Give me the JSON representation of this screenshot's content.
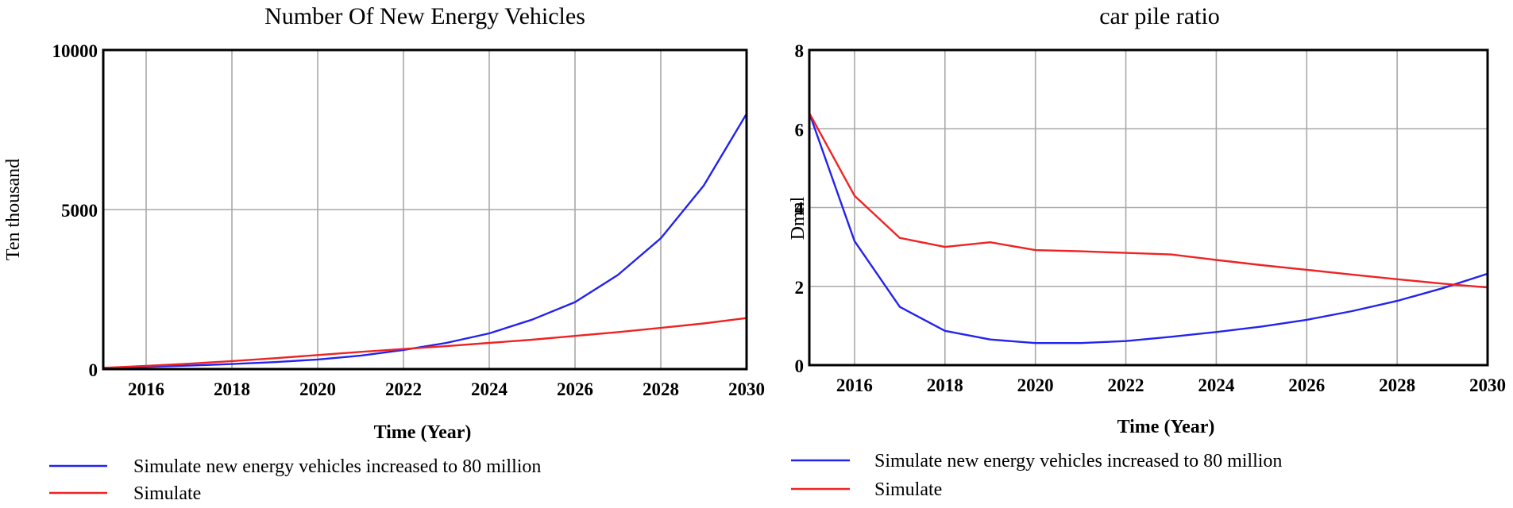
{
  "chart_data": [
    {
      "type": "line",
      "title": "Number Of New Energy Vehicles",
      "xlabel": "Time (Year)",
      "ylabel": "Ten thousand",
      "xlim": [
        2015,
        2030
      ],
      "ylim": [
        0,
        10000
      ],
      "x_ticks": [
        2016,
        2018,
        2020,
        2022,
        2024,
        2026,
        2028,
        2030
      ],
      "y_ticks": [
        0,
        5000,
        10000
      ],
      "grid": true,
      "legend_position": "bottom",
      "x": [
        2015,
        2016,
        2017,
        2018,
        2019,
        2020,
        2021,
        2022,
        2023,
        2024,
        2025,
        2026,
        2027,
        2028,
        2029,
        2030
      ],
      "series": [
        {
          "name": "Simulate new energy vehicles increased to 80 million",
          "color": "#2323ee",
          "values": [
            40,
            70,
            110,
            160,
            220,
            300,
            420,
            600,
            820,
            1120,
            1550,
            2100,
            2950,
            4100,
            5750,
            8000
          ]
        },
        {
          "name": "Simulate",
          "color": "#ee2323",
          "values": [
            40,
            100,
            170,
            250,
            340,
            440,
            540,
            630,
            720,
            820,
            920,
            1040,
            1160,
            1290,
            1430,
            1600
          ]
        }
      ]
    },
    {
      "type": "line",
      "title": "car pile ratio",
      "xlabel": "Time (Year)",
      "ylabel": "Dmnl",
      "xlim": [
        2015,
        2030
      ],
      "ylim": [
        0,
        8
      ],
      "x_ticks": [
        2016,
        2018,
        2020,
        2022,
        2024,
        2026,
        2028,
        2030
      ],
      "y_ticks": [
        0,
        2,
        4,
        6,
        8
      ],
      "grid": true,
      "legend_position": "bottom",
      "x": [
        2015,
        2016,
        2017,
        2018,
        2019,
        2020,
        2021,
        2022,
        2023,
        2024,
        2025,
        2026,
        2027,
        2028,
        2029,
        2030
      ],
      "series": [
        {
          "name": "Simulate new energy vehicles increased to 80 million",
          "color": "#2323ee",
          "values": [
            6.4,
            3.15,
            1.48,
            0.87,
            0.65,
            0.56,
            0.56,
            0.61,
            0.72,
            0.84,
            0.98,
            1.15,
            1.37,
            1.63,
            1.95,
            2.32
          ]
        },
        {
          "name": "Simulate",
          "color": "#ee2323",
          "values": [
            6.4,
            4.3,
            3.23,
            3.0,
            3.12,
            2.92,
            2.89,
            2.85,
            2.81,
            2.67,
            2.54,
            2.42,
            2.3,
            2.18,
            2.07,
            1.97
          ]
        }
      ]
    }
  ]
}
